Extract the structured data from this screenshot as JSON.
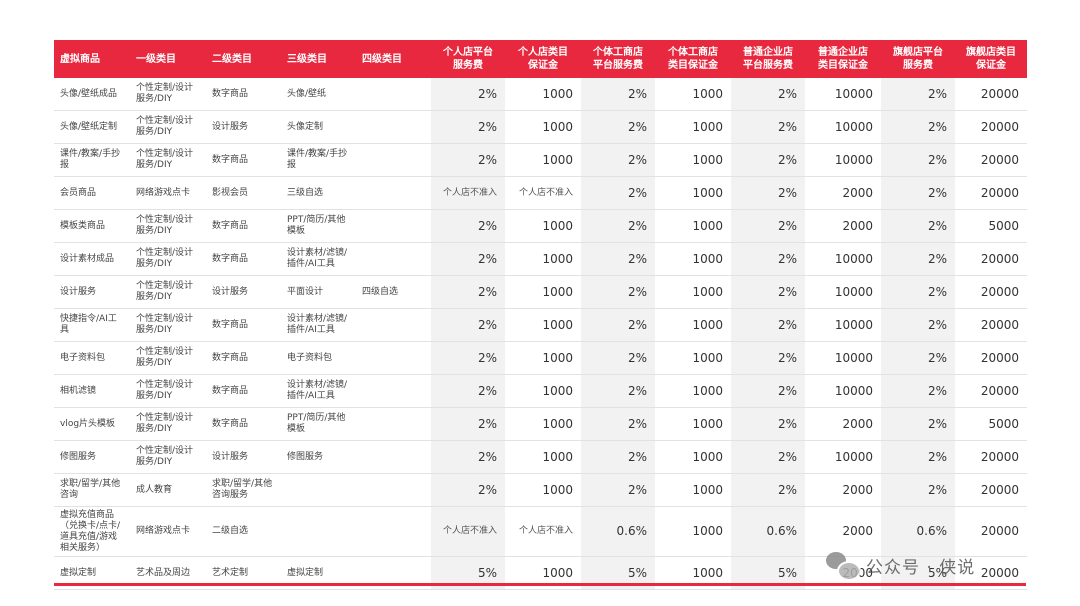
{
  "headers": [
    "虚拟商品",
    "一级类目",
    "二级类目",
    "三级类目",
    "四级类目",
    "个人店平台服务费",
    "个人店类目保证金",
    "个体工商店平台服务费",
    "个体工商店类目保证金",
    "普通企业店平台服务费",
    "普通企业店类目保证金",
    "旗舰店平台服务费",
    "旗舰店类目保证金"
  ],
  "header_lines": [
    [
      "虚拟商品"
    ],
    [
      "一级类目"
    ],
    [
      "二级类目"
    ],
    [
      "三级类目"
    ],
    [
      "四级类目"
    ],
    [
      "个人店平台",
      "服务费"
    ],
    [
      "个人店类目",
      "保证金"
    ],
    [
      "个体工商店",
      "平台服务费"
    ],
    [
      "个体工商店",
      "类目保证金"
    ],
    [
      "普通企业店",
      "平台服务费"
    ],
    [
      "普通企业店",
      "类目保证金"
    ],
    [
      "旗舰店平台",
      "服务费"
    ],
    [
      "旗舰店类目",
      "保证金"
    ]
  ],
  "rows": [
    [
      "头像/壁纸成品",
      "个性定制/设计服务/DIY",
      "数字商品",
      "头像/壁纸",
      "",
      "2%",
      "1000",
      "2%",
      "1000",
      "2%",
      "10000",
      "2%",
      "20000"
    ],
    [
      "头像/壁纸定制",
      "个性定制/设计服务/DIY",
      "设计服务",
      "头像定制",
      "",
      "2%",
      "1000",
      "2%",
      "1000",
      "2%",
      "10000",
      "2%",
      "20000"
    ],
    [
      "课件/教案/手抄报",
      "个性定制/设计服务/DIY",
      "数字商品",
      "课件/教案/手抄报",
      "",
      "2%",
      "1000",
      "2%",
      "1000",
      "2%",
      "10000",
      "2%",
      "20000"
    ],
    [
      "会员商品",
      "网络游戏点卡",
      "影视会员",
      "三级自选",
      "",
      "个人店不准入",
      "个人店不准入",
      "2%",
      "1000",
      "2%",
      "2000",
      "2%",
      "20000"
    ],
    [
      "模板类商品",
      "个性定制/设计服务/DIY",
      "数字商品",
      "PPT/简历/其他模板",
      "",
      "2%",
      "1000",
      "2%",
      "1000",
      "2%",
      "2000",
      "2%",
      "5000"
    ],
    [
      "设计素材成品",
      "个性定制/设计服务/DIY",
      "数字商品",
      "设计素材/滤镜/插件/AI工具",
      "",
      "2%",
      "1000",
      "2%",
      "1000",
      "2%",
      "10000",
      "2%",
      "20000"
    ],
    [
      "设计服务",
      "个性定制/设计服务/DIY",
      "设计服务",
      "平面设计",
      "四级自选",
      "2%",
      "1000",
      "2%",
      "1000",
      "2%",
      "10000",
      "2%",
      "20000"
    ],
    [
      "快捷指令/AI工具",
      "个性定制/设计服务/DIY",
      "数字商品",
      "设计素材/滤镜/插件/AI工具",
      "",
      "2%",
      "1000",
      "2%",
      "1000",
      "2%",
      "10000",
      "2%",
      "20000"
    ],
    [
      "电子资料包",
      "个性定制/设计服务/DIY",
      "数字商品",
      "电子资料包",
      "",
      "2%",
      "1000",
      "2%",
      "1000",
      "2%",
      "10000",
      "2%",
      "20000"
    ],
    [
      "相机滤镜",
      "个性定制/设计服务/DIY",
      "数字商品",
      "设计素材/滤镜/插件/AI工具",
      "",
      "2%",
      "1000",
      "2%",
      "1000",
      "2%",
      "10000",
      "2%",
      "20000"
    ],
    [
      "vlog片头模板",
      "个性定制/设计服务/DIY",
      "数字商品",
      "PPT/简历/其他模板",
      "",
      "2%",
      "1000",
      "2%",
      "1000",
      "2%",
      "2000",
      "2%",
      "5000"
    ],
    [
      "修图服务",
      "个性定制/设计服务/DIY",
      "设计服务",
      "修图服务",
      "",
      "2%",
      "1000",
      "2%",
      "1000",
      "2%",
      "10000",
      "2%",
      "20000"
    ],
    [
      "求职/留学/其他咨询",
      "成人教育",
      "求职/留学/其他咨询服务",
      "",
      "",
      "2%",
      "1000",
      "2%",
      "1000",
      "2%",
      "2000",
      "2%",
      "20000"
    ],
    [
      "虚拟充值商品（兑换卡/点卡/道具充值/游戏相关服务）",
      "网络游戏点卡",
      "二级自选",
      "",
      "",
      "个人店不准入",
      "个人店不准入",
      "0.6%",
      "1000",
      "0.6%",
      "2000",
      "0.6%",
      "20000"
    ],
    [
      "虚拟定制",
      "艺术品及周边",
      "艺术定制",
      "虚拟定制",
      "",
      "5%",
      "1000",
      "5%",
      "1000",
      "5%",
      "2000",
      "5%",
      "20000"
    ]
  ],
  "watermark": "公众号 · 侠说",
  "colors": {
    "accent": "#e8283f",
    "shade": "#f2f2f2"
  }
}
